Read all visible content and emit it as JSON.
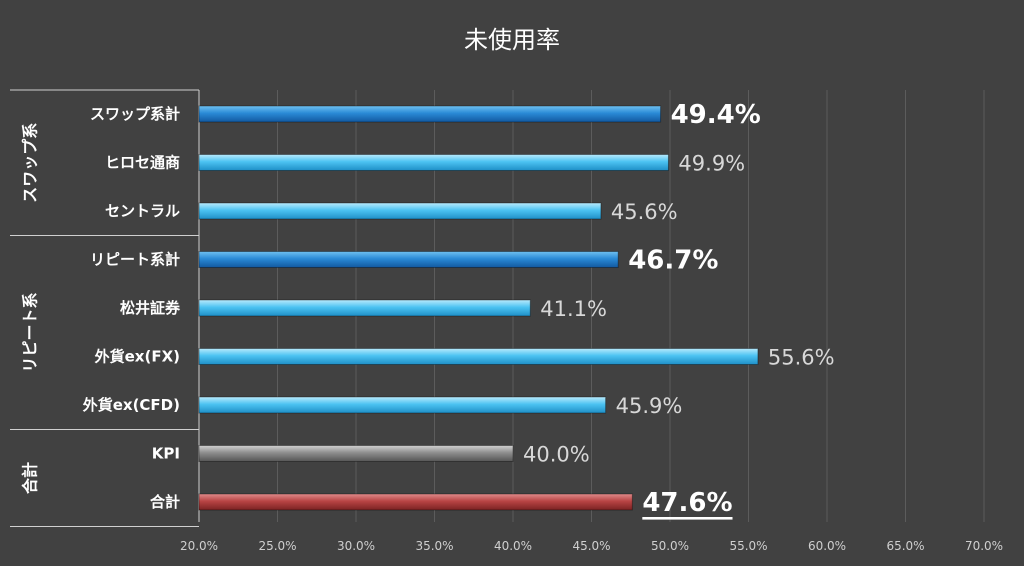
{
  "chart_data": {
    "type": "bar",
    "orientation": "horizontal",
    "title": "未使用率",
    "xlim": [
      20.0,
      70.0
    ],
    "x_ticks": [
      "20.0%",
      "25.0%",
      "30.0%",
      "35.0%",
      "40.0%",
      "45.0%",
      "50.0%",
      "55.0%",
      "60.0%",
      "65.0%",
      "70.0%"
    ],
    "x_tick_values": [
      20,
      25,
      30,
      35,
      40,
      45,
      50,
      55,
      60,
      65,
      70
    ],
    "grid": "vertical",
    "groups": [
      {
        "label": "スワップ系",
        "size": 3
      },
      {
        "label": "リピート系",
        "size": 4
      },
      {
        "label": "合計",
        "size": 2
      }
    ],
    "bars": [
      {
        "category": "スワップ系計",
        "value": 49.4,
        "label": "49.4%",
        "style": "subtotal",
        "color": "#1f78c8"
      },
      {
        "category": "ヒロセ通商",
        "value": 49.9,
        "label": "49.9%",
        "style": "normal",
        "color": "#45c1f1"
      },
      {
        "category": "セントラル",
        "value": 45.6,
        "label": "45.6%",
        "style": "normal",
        "color": "#45c1f1"
      },
      {
        "category": "リピート系計",
        "value": 46.7,
        "label": "46.7%",
        "style": "subtotal",
        "color": "#1f78c8"
      },
      {
        "category": "松井証券",
        "value": 41.1,
        "label": "41.1%",
        "style": "normal",
        "color": "#45c1f1"
      },
      {
        "category": "外貨ex(FX)",
        "value": 55.6,
        "label": "55.6%",
        "style": "normal",
        "color": "#45c1f1"
      },
      {
        "category": "外貨ex(CFD)",
        "value": 45.9,
        "label": "45.9%",
        "style": "normal",
        "color": "#45c1f1"
      },
      {
        "category": "KPI",
        "value": 40.0,
        "label": "40.0%",
        "style": "normal",
        "color": "#8c8c8c"
      },
      {
        "category": "合計",
        "value": 47.6,
        "label": "47.6%",
        "style": "total",
        "color": "#b84444"
      }
    ]
  }
}
